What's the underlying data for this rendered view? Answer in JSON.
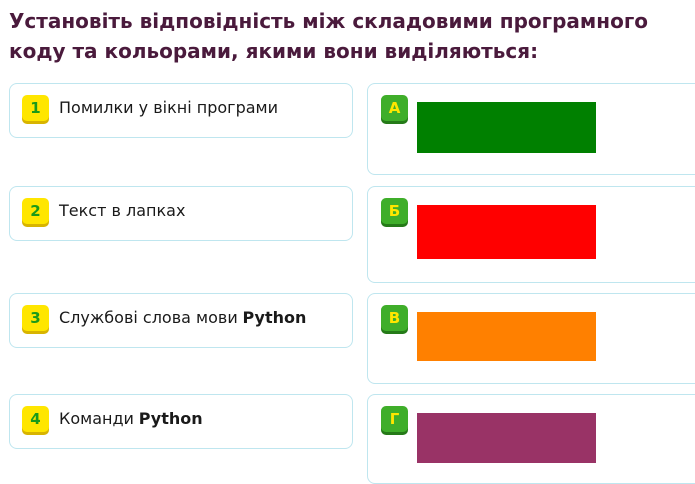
{
  "title": "Установіть відповідність між складовими програмного коду та кольорами, якими вони виділяються:",
  "items": [
    {
      "number": "1",
      "text": "Помилки у вікні програми"
    },
    {
      "number": "2",
      "text": "Текст в лапках"
    },
    {
      "number": "3",
      "text": "Службові слова мови",
      "strong": "Python"
    },
    {
      "number": "4",
      "text": "Команди",
      "strong": "Python"
    }
  ],
  "options": [
    {
      "letter": "А",
      "color": "#008000"
    },
    {
      "letter": "Б",
      "color": "#ff0000"
    },
    {
      "letter": "В",
      "color": "#ff8000"
    },
    {
      "letter": "Г",
      "color": "#993366"
    }
  ]
}
